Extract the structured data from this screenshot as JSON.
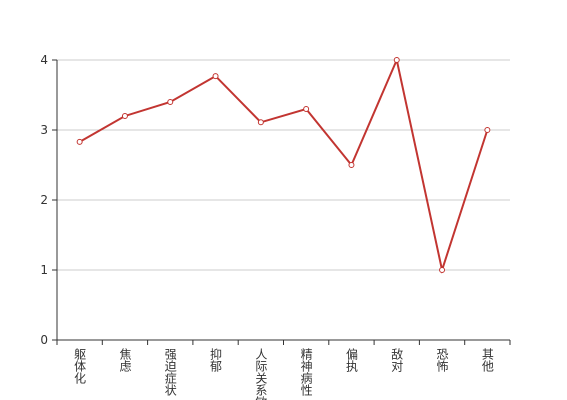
{
  "chart_data": {
    "type": "line",
    "categories": [
      "躯体化",
      "焦虑",
      "强迫症状",
      "抑郁",
      "人际关系敏感",
      "精神病性",
      "偏执",
      "敌对",
      "恐怖",
      "其他"
    ],
    "values": [
      2.83,
      3.2,
      3.4,
      3.77,
      3.11,
      3.3,
      2.5,
      4.0,
      1.0,
      3.0
    ],
    "color": "#c23531",
    "ylim": [
      0,
      4
    ],
    "yticks": [
      0,
      1,
      2,
      3,
      4
    ],
    "grid": true
  }
}
